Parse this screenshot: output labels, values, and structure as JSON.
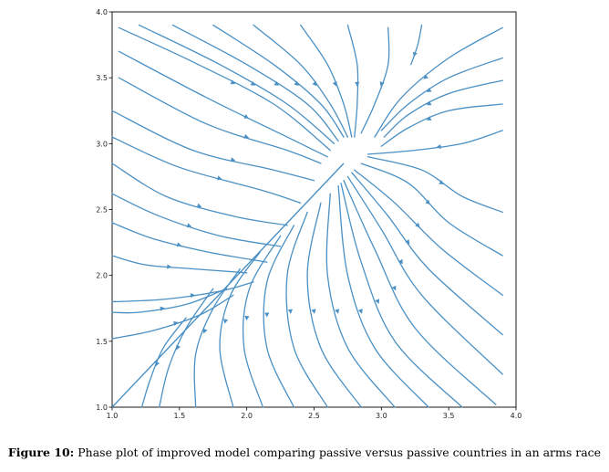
{
  "caption": {
    "label": "Figure 10:",
    "text": "Phase plot of improved model comparing passive versus passive countries in an arms race"
  },
  "chart_data": {
    "type": "streamplot",
    "title": "",
    "xlabel": "",
    "ylabel": "",
    "xlim": [
      1.0,
      4.0
    ],
    "ylim": [
      1.0,
      4.0
    ],
    "xticks": [
      "1.0",
      "1.5",
      "2.0",
      "2.5",
      "3.0",
      "3.5",
      "4.0"
    ],
    "yticks": [
      "1.0",
      "1.5",
      "2.0",
      "2.5",
      "3.0",
      "3.5",
      "4.0"
    ],
    "grid": false,
    "line_color": "#4a90c4",
    "saddle_point": [
      2.72,
      2.85
    ],
    "separatrix": [
      [
        1.0,
        1.0
      ],
      [
        2.72,
        2.85
      ]
    ],
    "streamlines": [
      {
        "region": "upper-left",
        "points": [
          [
            1.05,
            3.88
          ],
          [
            1.6,
            3.62
          ],
          [
            2.2,
            3.3
          ],
          [
            2.62,
            2.95
          ]
        ]
      },
      {
        "region": "upper-left",
        "points": [
          [
            1.05,
            3.7
          ],
          [
            1.7,
            3.35
          ],
          [
            2.3,
            3.05
          ],
          [
            2.6,
            2.9
          ]
        ]
      },
      {
        "region": "upper-left",
        "points": [
          [
            1.05,
            3.5
          ],
          [
            1.7,
            3.15
          ],
          [
            2.3,
            2.95
          ],
          [
            2.55,
            2.85
          ]
        ]
      },
      {
        "region": "upper-left",
        "points": [
          [
            1.0,
            3.25
          ],
          [
            1.6,
            2.95
          ],
          [
            2.2,
            2.8
          ],
          [
            2.5,
            2.72
          ]
        ]
      },
      {
        "region": "upper-left",
        "points": [
          [
            1.0,
            3.05
          ],
          [
            1.5,
            2.82
          ],
          [
            2.1,
            2.65
          ],
          [
            2.4,
            2.55
          ]
        ]
      },
      {
        "region": "upper-left",
        "points": [
          [
            1.0,
            2.85
          ],
          [
            1.4,
            2.6
          ],
          [
            1.9,
            2.45
          ],
          [
            2.3,
            2.38
          ]
        ]
      },
      {
        "region": "upper-left",
        "points": [
          [
            1.0,
            2.62
          ],
          [
            1.35,
            2.45
          ],
          [
            1.8,
            2.3
          ],
          [
            2.25,
            2.22
          ]
        ]
      },
      {
        "region": "upper-left",
        "points": [
          [
            1.0,
            2.4
          ],
          [
            1.3,
            2.28
          ],
          [
            1.7,
            2.18
          ],
          [
            2.15,
            2.1
          ]
        ]
      },
      {
        "region": "upper-left",
        "points": [
          [
            1.0,
            2.15
          ],
          [
            1.25,
            2.08
          ],
          [
            1.6,
            2.05
          ],
          [
            2.0,
            2.02
          ]
        ]
      },
      {
        "region": "upper-left",
        "points": [
          [
            1.0,
            1.8
          ],
          [
            1.4,
            1.82
          ],
          [
            1.8,
            1.88
          ],
          [
            2.05,
            1.95
          ]
        ]
      },
      {
        "region": "upper-left",
        "points": [
          [
            1.0,
            1.52
          ],
          [
            1.3,
            1.58
          ],
          [
            1.65,
            1.7
          ],
          [
            1.9,
            1.85
          ]
        ]
      },
      {
        "region": "upper-left",
        "points": [
          [
            1.0,
            1.72
          ],
          [
            1.2,
            1.72
          ],
          [
            1.55,
            1.78
          ],
          [
            1.85,
            1.9
          ]
        ]
      },
      {
        "region": "top",
        "points": [
          [
            1.2,
            3.9
          ],
          [
            1.8,
            3.6
          ],
          [
            2.3,
            3.3
          ],
          [
            2.65,
            3.0
          ]
        ]
      },
      {
        "region": "top",
        "points": [
          [
            1.45,
            3.9
          ],
          [
            2.0,
            3.6
          ],
          [
            2.45,
            3.3
          ],
          [
            2.68,
            3.02
          ]
        ]
      },
      {
        "region": "top",
        "points": [
          [
            1.75,
            3.9
          ],
          [
            2.2,
            3.6
          ],
          [
            2.55,
            3.3
          ],
          [
            2.72,
            3.05
          ]
        ]
      },
      {
        "region": "top",
        "points": [
          [
            2.05,
            3.9
          ],
          [
            2.4,
            3.6
          ],
          [
            2.62,
            3.3
          ],
          [
            2.75,
            3.05
          ]
        ]
      },
      {
        "region": "top",
        "points": [
          [
            2.4,
            3.9
          ],
          [
            2.6,
            3.6
          ],
          [
            2.72,
            3.3
          ],
          [
            2.78,
            3.05
          ]
        ]
      },
      {
        "region": "top",
        "points": [
          [
            2.75,
            3.9
          ],
          [
            2.82,
            3.6
          ],
          [
            2.82,
            3.3
          ],
          [
            2.8,
            3.05
          ]
        ]
      },
      {
        "region": "top",
        "points": [
          [
            3.05,
            3.88
          ],
          [
            3.05,
            3.6
          ],
          [
            2.95,
            3.3
          ],
          [
            2.85,
            3.08
          ]
        ]
      },
      {
        "region": "top",
        "points": [
          [
            3.3,
            3.9
          ],
          [
            3.27,
            3.75
          ],
          [
            3.22,
            3.6
          ]
        ]
      },
      {
        "region": "upper-right",
        "points": [
          [
            3.9,
            3.88
          ],
          [
            3.5,
            3.65
          ],
          [
            3.15,
            3.35
          ],
          [
            2.95,
            3.05
          ]
        ]
      },
      {
        "region": "upper-right",
        "points": [
          [
            3.9,
            3.65
          ],
          [
            3.5,
            3.5
          ],
          [
            3.2,
            3.3
          ],
          [
            3.0,
            3.1
          ]
        ]
      },
      {
        "region": "upper-right",
        "points": [
          [
            3.9,
            3.48
          ],
          [
            3.5,
            3.38
          ],
          [
            3.2,
            3.22
          ],
          [
            3.02,
            3.05
          ]
        ]
      },
      {
        "region": "upper-right",
        "points": [
          [
            3.9,
            3.3
          ],
          [
            3.5,
            3.25
          ],
          [
            3.2,
            3.12
          ],
          [
            3.0,
            2.98
          ]
        ]
      },
      {
        "region": "upper-right",
        "points": [
          [
            3.9,
            3.1
          ],
          [
            3.6,
            3.0
          ],
          [
            3.25,
            2.95
          ],
          [
            2.9,
            2.92
          ]
        ]
      },
      {
        "region": "right",
        "points": [
          [
            2.9,
            2.9
          ],
          [
            3.3,
            2.8
          ],
          [
            3.6,
            2.6
          ],
          [
            3.9,
            2.48
          ]
        ]
      },
      {
        "region": "right",
        "points": [
          [
            2.85,
            2.85
          ],
          [
            3.2,
            2.7
          ],
          [
            3.5,
            2.4
          ],
          [
            3.9,
            2.15
          ]
        ]
      },
      {
        "region": "right",
        "points": [
          [
            2.8,
            2.8
          ],
          [
            3.1,
            2.55
          ],
          [
            3.45,
            2.2
          ],
          [
            3.9,
            1.85
          ]
        ]
      },
      {
        "region": "right",
        "points": [
          [
            2.78,
            2.78
          ],
          [
            3.05,
            2.45
          ],
          [
            3.35,
            2.05
          ],
          [
            3.9,
            1.55
          ]
        ]
      },
      {
        "region": "right",
        "points": [
          [
            2.75,
            2.75
          ],
          [
            3.0,
            2.35
          ],
          [
            3.3,
            1.85
          ],
          [
            3.9,
            1.25
          ]
        ]
      },
      {
        "region": "right",
        "points": [
          [
            2.72,
            2.72
          ],
          [
            2.95,
            2.2
          ],
          [
            3.25,
            1.6
          ],
          [
            3.85,
            1.02
          ]
        ]
      },
      {
        "region": "lower-right",
        "points": [
          [
            2.7,
            2.7
          ],
          [
            2.85,
            2.1
          ],
          [
            3.1,
            1.5
          ],
          [
            3.6,
            1.0
          ]
        ]
      },
      {
        "region": "lower-right",
        "points": [
          [
            2.68,
            2.68
          ],
          [
            2.75,
            2.0
          ],
          [
            2.95,
            1.45
          ],
          [
            3.35,
            1.0
          ]
        ]
      },
      {
        "region": "lower-right",
        "points": [
          [
            2.62,
            2.62
          ],
          [
            2.6,
            2.0
          ],
          [
            2.75,
            1.45
          ],
          [
            3.1,
            1.0
          ]
        ]
      },
      {
        "region": "lower-right",
        "points": [
          [
            2.55,
            2.55
          ],
          [
            2.45,
            2.0
          ],
          [
            2.55,
            1.45
          ],
          [
            2.85,
            1.0
          ]
        ]
      },
      {
        "region": "lower-right",
        "points": [
          [
            2.45,
            2.48
          ],
          [
            2.3,
            2.0
          ],
          [
            2.35,
            1.45
          ],
          [
            2.6,
            1.0
          ]
        ]
      },
      {
        "region": "bottom",
        "points": [
          [
            2.35,
            2.38
          ],
          [
            2.15,
            1.95
          ],
          [
            2.15,
            1.45
          ],
          [
            2.35,
            1.0
          ]
        ]
      },
      {
        "region": "bottom",
        "points": [
          [
            2.25,
            2.3
          ],
          [
            2.02,
            1.9
          ],
          [
            1.98,
            1.45
          ],
          [
            2.12,
            1.0
          ]
        ]
      },
      {
        "region": "bottom",
        "points": [
          [
            2.1,
            2.18
          ],
          [
            1.88,
            1.85
          ],
          [
            1.8,
            1.45
          ],
          [
            1.9,
            1.0
          ]
        ]
      },
      {
        "region": "bottom",
        "points": [
          [
            1.95,
            2.05
          ],
          [
            1.75,
            1.75
          ],
          [
            1.62,
            1.4
          ],
          [
            1.62,
            1.0
          ]
        ]
      },
      {
        "region": "bottom",
        "points": [
          [
            1.75,
            1.9
          ],
          [
            1.55,
            1.6
          ],
          [
            1.42,
            1.3
          ],
          [
            1.35,
            1.0
          ]
        ]
      },
      {
        "region": "bottom",
        "points": [
          [
            1.55,
            1.68
          ],
          [
            1.38,
            1.45
          ],
          [
            1.28,
            1.2
          ],
          [
            1.22,
            1.0
          ]
        ]
      }
    ]
  }
}
